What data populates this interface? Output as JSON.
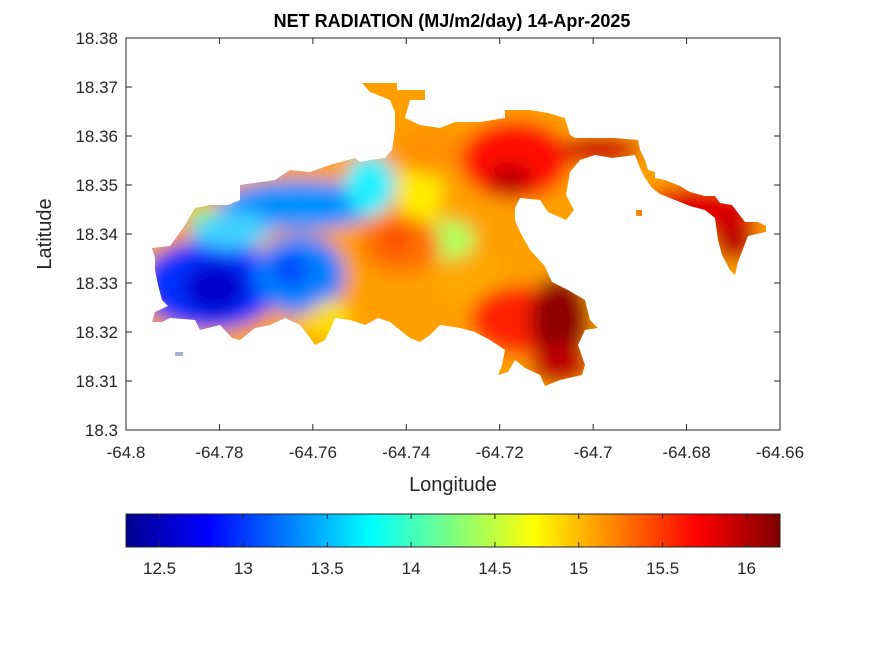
{
  "figure": {
    "title": "NET RADIATION (MJ/m2/day) 14-Apr-2025"
  },
  "axes": {
    "xlabel": "Longitude",
    "ylabel": "Latitude",
    "xlim": [
      -64.8,
      -64.66
    ],
    "ylim": [
      18.3,
      18.38
    ],
    "xticks": [
      "-64.8",
      "-64.78",
      "-64.76",
      "-64.74",
      "-64.72",
      "-64.7",
      "-64.68",
      "-64.66"
    ],
    "yticks": [
      "18.3",
      "18.31",
      "18.32",
      "18.33",
      "18.34",
      "18.35",
      "18.36",
      "18.37",
      "18.38"
    ]
  },
  "colorbar": {
    "colormap": "jet",
    "orientation": "horizontal",
    "range": [
      12.3,
      16.2
    ],
    "ticks": [
      "12.5",
      "13",
      "13.5",
      "14",
      "14.5",
      "15",
      "15.5",
      "16"
    ],
    "tick_values": [
      12.5,
      13,
      13.5,
      14,
      14.5,
      15,
      15.5,
      16
    ]
  },
  "map_data": {
    "type": "filled-contour map",
    "variable": "net radiation",
    "units": "MJ/m2/day",
    "date": "14-Apr-2025",
    "region_extent": {
      "lon": [
        -64.795,
        -64.665
      ],
      "lat": [
        18.309,
        18.371
      ]
    },
    "features": [
      {
        "label_hint": "western low",
        "lon": -64.779,
        "lat": 18.329,
        "value": 12.4
      },
      {
        "label_hint": "west-central low",
        "lon": -64.765,
        "lat": 18.333,
        "value": 13.1
      },
      {
        "label_hint": "north-west cool band",
        "lon": -64.766,
        "lat": 18.348,
        "value": 13.4
      },
      {
        "label_hint": "northern cool tongue",
        "lon": -64.75,
        "lat": 18.352,
        "value": 13.9
      },
      {
        "label_hint": "central warm",
        "lon": -64.74,
        "lat": 18.337,
        "value": 15.4
      },
      {
        "label_hint": "central-east mid",
        "lon": -64.728,
        "lat": 18.34,
        "value": 14.6
      },
      {
        "label_hint": "north-east high",
        "lon": -64.718,
        "lat": 18.356,
        "value": 15.9
      },
      {
        "label_hint": "south-east high",
        "lon": -64.708,
        "lat": 18.322,
        "value": 16.2
      },
      {
        "label_hint": "far east peninsula",
        "lon": -64.67,
        "lat": 18.337,
        "value": 16.0
      }
    ]
  }
}
